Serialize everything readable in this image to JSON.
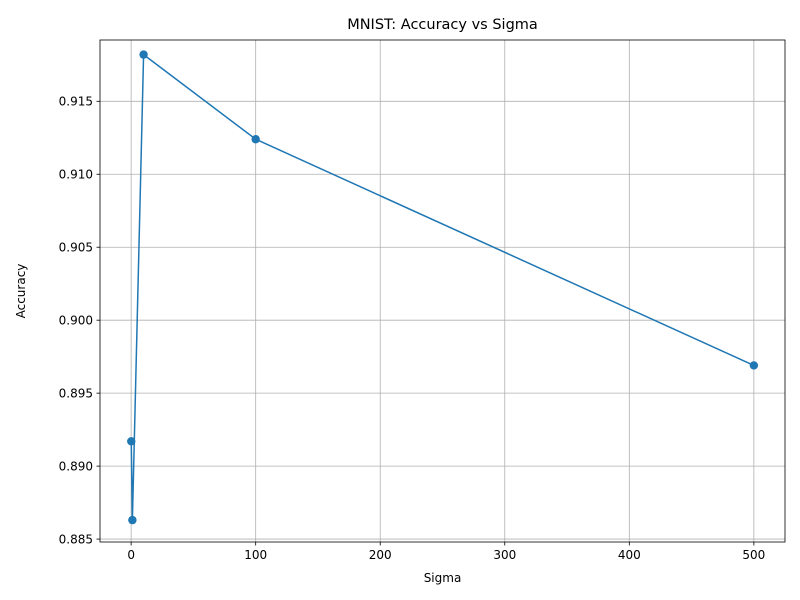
{
  "chart_data": {
    "type": "line",
    "title": "MNIST: Accuracy vs Sigma",
    "xlabel": "Sigma",
    "ylabel": "Accuracy",
    "x": [
      0.1,
      1,
      10,
      100,
      500
    ],
    "series": [
      {
        "values": [
          0.8917,
          0.8863,
          0.9182,
          0.9124,
          0.8969
        ],
        "color": "#1f77b4",
        "marker": "circle"
      }
    ],
    "xlim": [
      -25,
      525
    ],
    "ylim": [
      0.8848,
      0.9192
    ],
    "xticks": [
      0,
      100,
      200,
      300,
      400,
      500
    ],
    "yticks": [
      0.885,
      0.89,
      0.895,
      0.9,
      0.905,
      0.91,
      0.915
    ],
    "xtick_labels": [
      "0",
      "100",
      "200",
      "300",
      "400",
      "500"
    ],
    "ytick_labels": [
      "0.885",
      "0.890",
      "0.895",
      "0.900",
      "0.905",
      "0.910",
      "0.915"
    ],
    "grid": true
  }
}
